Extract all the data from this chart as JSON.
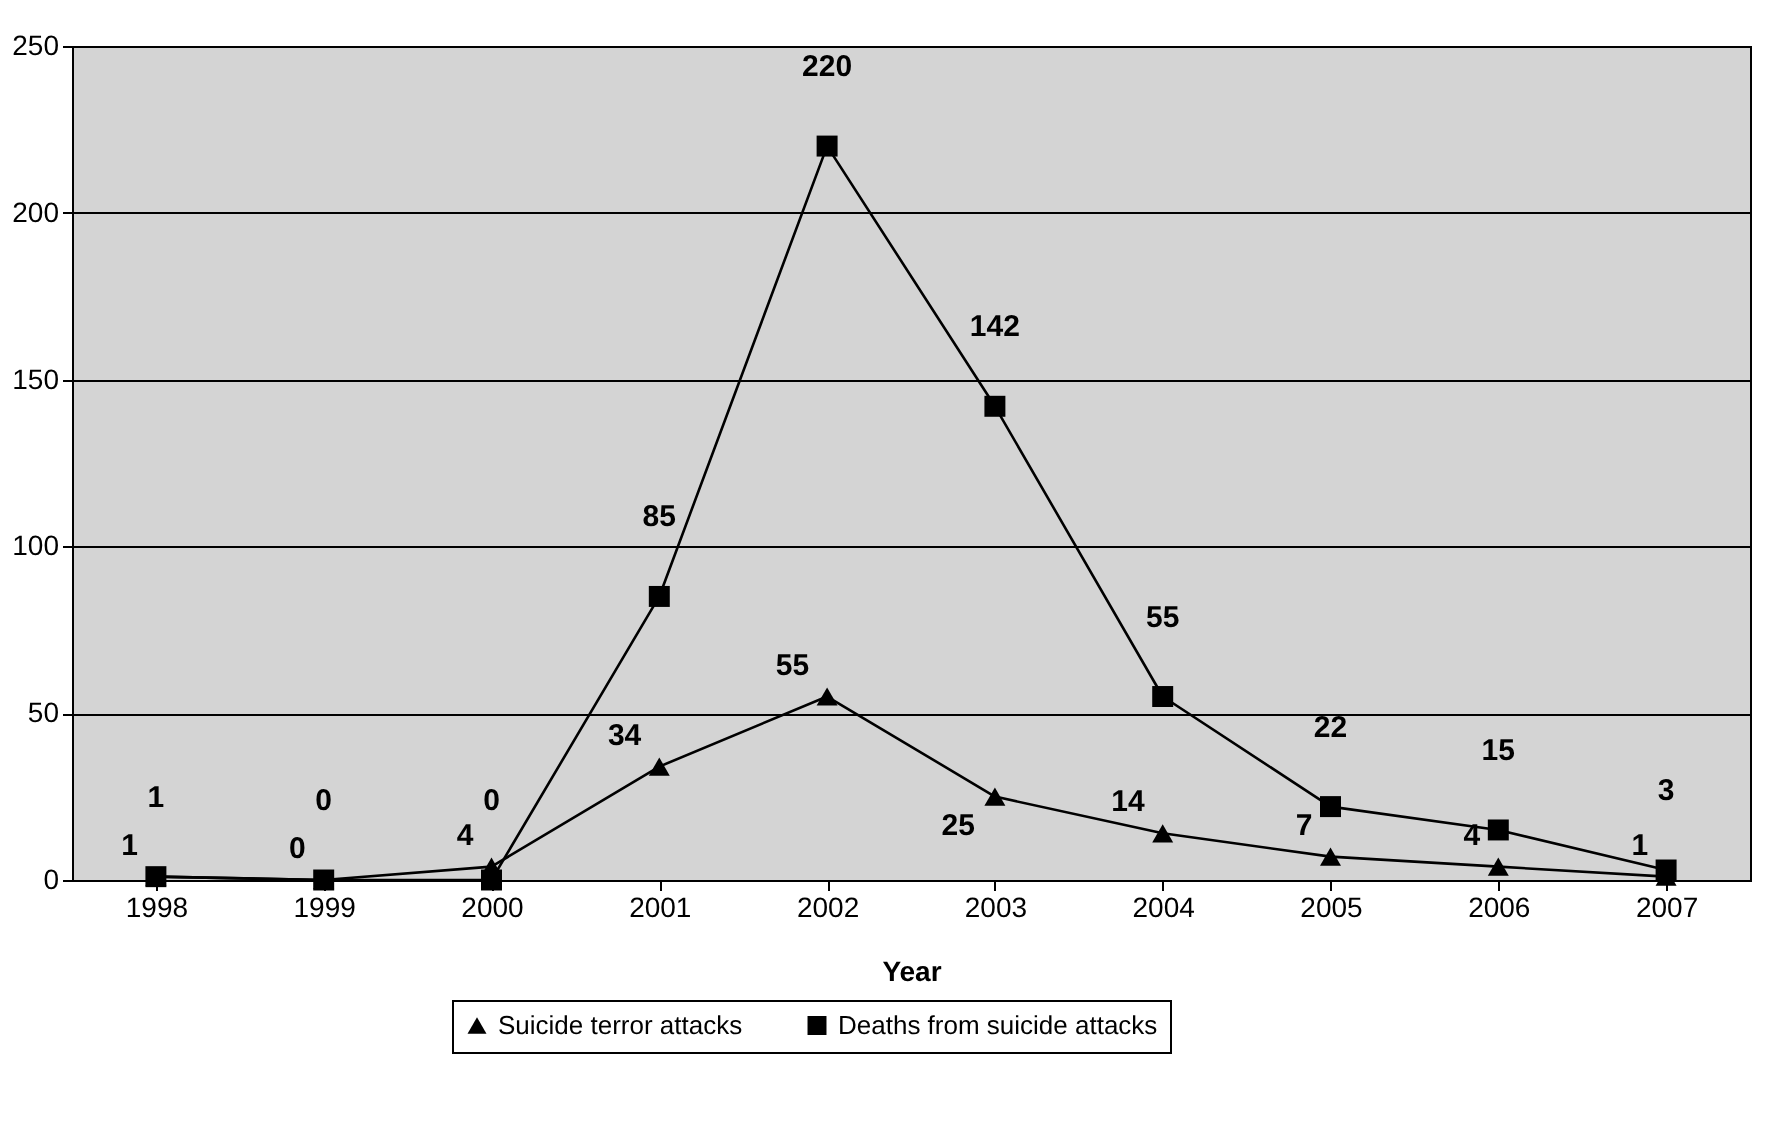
{
  "chart_data": {
    "type": "line",
    "xlabel": "Year",
    "categories": [
      "1998",
      "1999",
      "2000",
      "2001",
      "2002",
      "2003",
      "2004",
      "2005",
      "2006",
      "2007"
    ],
    "series": [
      {
        "name": "Suicide terror attacks",
        "color": "#000000",
        "marker": "triangle",
        "values": [
          1,
          0,
          4,
          34,
          55,
          25,
          14,
          7,
          4,
          1
        ]
      },
      {
        "name": "Deaths from suicide attacks",
        "color": "#000000",
        "marker": "square",
        "values": [
          1,
          0,
          0,
          85,
          220,
          142,
          55,
          22,
          15,
          3
        ]
      }
    ],
    "ylim": [
      0,
      250
    ],
    "yticks": [
      0,
      50,
      100,
      150,
      200,
      250
    ],
    "grid": "y",
    "legend": "bottom",
    "data_labels": true
  }
}
